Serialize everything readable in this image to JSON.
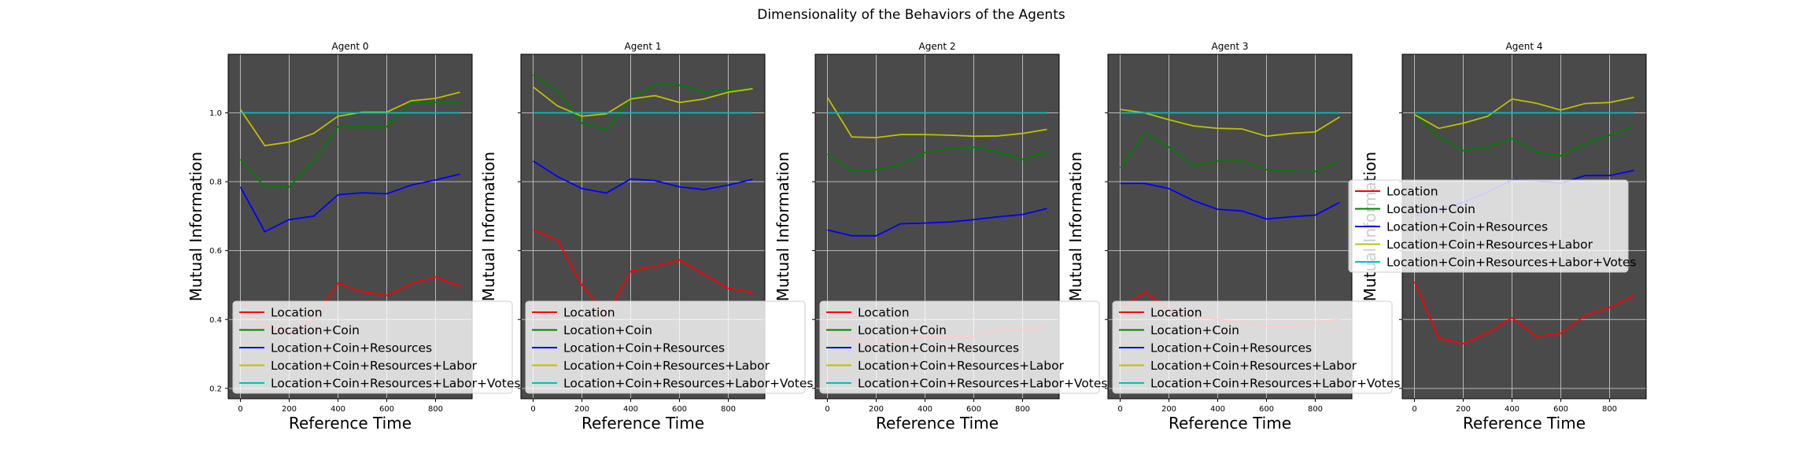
{
  "figure": {
    "title": "Dimensionality of the Behaviors of the Agents",
    "xlabel": "Reference Time",
    "ylabel": "Mutual Information"
  },
  "chart_data": {
    "type": "line",
    "xlim": [
      -50,
      950
    ],
    "ylim": [
      0.17,
      1.17
    ],
    "xticks": [
      0,
      200,
      400,
      600,
      800
    ],
    "yticks": [
      0.2,
      0.4,
      0.6,
      0.8,
      1.0
    ],
    "ytick_labels": [
      "0.2",
      "0.4",
      "0.6",
      "0.8",
      "1.0"
    ],
    "grid": true,
    "background": "#4a4a4a",
    "legend_placement": "lower-left",
    "series_styles": [
      {
        "name": "Location",
        "color": "#ff0000"
      },
      {
        "name": "Location+Coin",
        "color": "#008000"
      },
      {
        "name": "Location+Coin+Resources",
        "color": "#0000ff"
      },
      {
        "name": "Location+Coin+Resources+Labor",
        "color": "#bfbf00"
      },
      {
        "name": "Location+Coin+Resources+Labor+Votes",
        "color": "#00bfbf"
      }
    ],
    "x": [
      0,
      100,
      200,
      300,
      400,
      500,
      600,
      700,
      800,
      900
    ],
    "panels": [
      {
        "title": "Agent 0",
        "legend_placement": "lower-left",
        "series": [
          {
            "name": "Location",
            "values": [
              0.45,
              0.38,
              0.36,
              0.4,
              0.505,
              0.48,
              0.47,
              0.505,
              0.523,
              0.495
            ]
          },
          {
            "name": "Location+Coin",
            "values": [
              0.865,
              0.785,
              0.785,
              0.86,
              0.96,
              0.96,
              0.96,
              1.03,
              1.03,
              1.03
            ]
          },
          {
            "name": "Location+Coin+Resources",
            "values": [
              0.785,
              0.655,
              0.69,
              0.7,
              0.762,
              0.768,
              0.765,
              0.79,
              0.805,
              0.822
            ]
          },
          {
            "name": "Location+Coin+Resources+Labor",
            "values": [
              1.01,
              0.905,
              0.915,
              0.94,
              0.99,
              1.002,
              1.002,
              1.035,
              1.042,
              1.06
            ]
          },
          {
            "name": "Location+Coin+Resources+Labor+Votes",
            "values": [
              1.0,
              1.0,
              1.0,
              1.0,
              1.0,
              1.0,
              1.0,
              1.0,
              1.0,
              1.0
            ]
          }
        ]
      },
      {
        "title": "Agent 1",
        "legend_placement": "lower-left",
        "series": [
          {
            "name": "Location",
            "values": [
              0.66,
              0.63,
              0.5,
              0.41,
              0.54,
              0.555,
              0.573,
              0.53,
              0.49,
              0.478
            ]
          },
          {
            "name": "Location+Coin",
            "values": [
              1.11,
              1.06,
              0.97,
              0.95,
              1.04,
              1.08,
              1.08,
              1.06,
              1.065,
              1.07
            ]
          },
          {
            "name": "Location+Coin+Resources",
            "values": [
              0.86,
              0.815,
              0.78,
              0.767,
              0.808,
              0.803,
              0.785,
              0.777,
              0.79,
              0.807
            ]
          },
          {
            "name": "Location+Coin+Resources+Labor",
            "values": [
              1.075,
              1.02,
              0.99,
              0.997,
              1.04,
              1.05,
              1.03,
              1.04,
              1.06,
              1.07
            ]
          },
          {
            "name": "Location+Coin+Resources+Labor+Votes",
            "values": [
              1.0,
              1.0,
              1.0,
              1.0,
              1.0,
              1.0,
              1.0,
              1.0,
              1.0,
              1.0
            ]
          }
        ]
      },
      {
        "title": "Agent 2",
        "legend_placement": "lower-left",
        "series": [
          {
            "name": "Location",
            "values": [
              0.37,
              0.34,
              0.33,
              0.34,
              0.35,
              0.35,
              0.35,
              0.37,
              0.37,
              0.38
            ]
          },
          {
            "name": "Location+Coin",
            "values": [
              0.88,
              0.83,
              0.835,
              0.85,
              0.885,
              0.895,
              0.9,
              0.885,
              0.865,
              0.885
            ]
          },
          {
            "name": "Location+Coin+Resources",
            "values": [
              0.66,
              0.643,
              0.643,
              0.678,
              0.68,
              0.683,
              0.69,
              0.698,
              0.705,
              0.722
            ]
          },
          {
            "name": "Location+Coin+Resources+Labor",
            "values": [
              1.045,
              0.93,
              0.928,
              0.937,
              0.937,
              0.935,
              0.932,
              0.933,
              0.94,
              0.952
            ]
          },
          {
            "name": "Location+Coin+Resources+Labor+Votes",
            "values": [
              1.0,
              1.0,
              1.0,
              1.0,
              1.0,
              1.0,
              1.0,
              1.0,
              1.0,
              1.0
            ]
          }
        ]
      },
      {
        "title": "Agent 3",
        "legend_placement": "lower-left",
        "series": [
          {
            "name": "Location",
            "values": [
              0.43,
              0.48,
              0.43,
              0.41,
              0.4,
              0.39,
              0.38,
              0.38,
              0.39,
              0.4
            ]
          },
          {
            "name": "Location+Coin",
            "values": [
              0.84,
              0.94,
              0.9,
              0.845,
              0.86,
              0.86,
              0.835,
              0.83,
              0.83,
              0.86
            ]
          },
          {
            "name": "Location+Coin+Resources",
            "values": [
              0.795,
              0.795,
              0.78,
              0.745,
              0.72,
              0.715,
              0.692,
              0.698,
              0.703,
              0.74
            ]
          },
          {
            "name": "Location+Coin+Resources+Labor",
            "values": [
              1.01,
              1.0,
              0.98,
              0.962,
              0.955,
              0.953,
              0.932,
              0.94,
              0.945,
              0.988
            ]
          },
          {
            "name": "Location+Coin+Resources+Labor+Votes",
            "values": [
              1.0,
              1.0,
              1.0,
              1.0,
              1.0,
              1.0,
              1.0,
              1.0,
              1.0,
              1.0
            ]
          }
        ]
      },
      {
        "title": "Agent 4",
        "legend_placement": "center-left",
        "series": [
          {
            "name": "Location",
            "values": [
              0.51,
              0.345,
              0.33,
              0.362,
              0.405,
              0.35,
              0.36,
              0.412,
              0.435,
              0.47
            ]
          },
          {
            "name": "Location+Coin",
            "values": [
              0.995,
              0.93,
              0.89,
              0.9,
              0.925,
              0.885,
              0.875,
              0.91,
              0.935,
              0.96
            ]
          },
          {
            "name": "Location+Coin+Resources",
            "values": [
              0.7,
              0.72,
              0.74,
              0.77,
              0.805,
              0.803,
              0.795,
              0.818,
              0.818,
              0.833
            ]
          },
          {
            "name": "Location+Coin+Resources+Labor",
            "values": [
              0.995,
              0.955,
              0.97,
              0.99,
              1.04,
              1.028,
              1.008,
              1.027,
              1.03,
              1.045
            ]
          },
          {
            "name": "Location+Coin+Resources+Labor+Votes",
            "values": [
              1.0,
              1.0,
              1.0,
              1.0,
              1.0,
              1.0,
              1.0,
              1.0,
              1.0,
              1.0
            ]
          }
        ]
      }
    ]
  }
}
